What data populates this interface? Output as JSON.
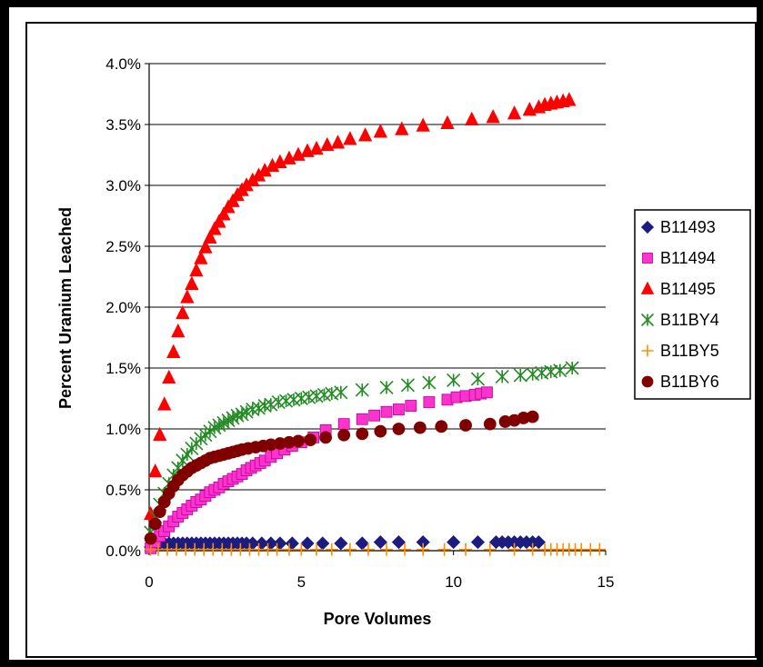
{
  "chart_data": {
    "type": "scatter",
    "title": "",
    "xlabel": "Pore Volumes",
    "ylabel": "Percent Uranium Leached",
    "xlim": [
      0,
      15
    ],
    "ylim": [
      0,
      0.04
    ],
    "xticks": [
      0,
      5,
      10,
      15
    ],
    "xtick_labels": [
      "0",
      "5",
      "10",
      "15"
    ],
    "yticks": [
      0,
      0.005,
      0.01,
      0.015,
      0.02,
      0.025,
      0.03,
      0.035,
      0.04
    ],
    "ytick_labels": [
      "0.0%",
      "0.5%",
      "1.0%",
      "1.5%",
      "2.0%",
      "2.5%",
      "3.0%",
      "3.5%",
      "4.0%"
    ],
    "grid": "horizontal major gridlines",
    "legend": "right",
    "series": [
      {
        "name": "B11493",
        "marker": "diamond",
        "color": "#1c1c80",
        "x": [
          0.05,
          0.2,
          0.35,
          0.5,
          0.65,
          0.8,
          0.95,
          1.1,
          1.25,
          1.4,
          1.55,
          1.7,
          1.85,
          2.0,
          2.15,
          2.3,
          2.45,
          2.6,
          2.75,
          2.9,
          3.05,
          3.2,
          3.4,
          3.7,
          4.0,
          4.3,
          4.7,
          5.2,
          5.7,
          6.3,
          7.0,
          7.6,
          8.2,
          9.0,
          10.0,
          10.8,
          11.4,
          11.6,
          11.8,
          12.0,
          12.2,
          12.4,
          12.6,
          12.8
        ],
        "y": [
          0.0003,
          0.0005,
          0.0006,
          0.0006,
          0.0006,
          0.0006,
          0.0006,
          0.0006,
          0.0006,
          0.0006,
          0.0006,
          0.0006,
          0.0006,
          0.0006,
          0.0006,
          0.0006,
          0.0006,
          0.0006,
          0.0006,
          0.0006,
          0.0006,
          0.0006,
          0.0006,
          0.0006,
          0.0006,
          0.0006,
          0.0006,
          0.0006,
          0.0006,
          0.0006,
          0.0006,
          0.0007,
          0.0007,
          0.0007,
          0.0007,
          0.0007,
          0.0007,
          0.0007,
          0.0007,
          0.0007,
          0.0007,
          0.0007,
          0.0007,
          0.0007
        ]
      },
      {
        "name": "B11494",
        "marker": "square",
        "color": "#ff33cc",
        "x": [
          0.05,
          0.2,
          0.35,
          0.5,
          0.65,
          0.8,
          0.95,
          1.1,
          1.25,
          1.4,
          1.55,
          1.7,
          1.85,
          2.0,
          2.15,
          2.3,
          2.45,
          2.6,
          2.75,
          2.9,
          3.05,
          3.2,
          3.35,
          3.5,
          3.65,
          3.8,
          4.0,
          4.2,
          4.45,
          4.7,
          5.0,
          5.4,
          5.8,
          6.4,
          7.0,
          7.4,
          7.8,
          8.2,
          8.6,
          9.2,
          9.8,
          10.1,
          10.4,
          10.7,
          10.9,
          11.1
        ],
        "y": [
          0.0002,
          0.0007,
          0.0012,
          0.0016,
          0.002,
          0.0024,
          0.0028,
          0.0031,
          0.0034,
          0.0037,
          0.004,
          0.0042,
          0.0045,
          0.0048,
          0.005,
          0.0052,
          0.0055,
          0.0057,
          0.0059,
          0.0061,
          0.0063,
          0.0066,
          0.0068,
          0.007,
          0.0072,
          0.0074,
          0.0077,
          0.008,
          0.0083,
          0.0086,
          0.0089,
          0.0093,
          0.0099,
          0.0104,
          0.0108,
          0.0111,
          0.0114,
          0.0116,
          0.0119,
          0.0122,
          0.0124,
          0.0126,
          0.0127,
          0.0128,
          0.0129,
          0.013
        ]
      },
      {
        "name": "B11495",
        "marker": "triangle",
        "color": "#ff0000",
        "x": [
          0.05,
          0.2,
          0.35,
          0.5,
          0.65,
          0.8,
          0.95,
          1.1,
          1.25,
          1.4,
          1.55,
          1.7,
          1.85,
          2.0,
          2.15,
          2.3,
          2.45,
          2.6,
          2.75,
          2.9,
          3.05,
          3.2,
          3.4,
          3.6,
          3.8,
          4.05,
          4.3,
          4.6,
          4.9,
          5.2,
          5.5,
          5.85,
          6.2,
          6.6,
          7.1,
          7.6,
          8.3,
          9.0,
          9.8,
          10.6,
          11.3,
          12.0,
          12.5,
          12.8,
          13.0,
          13.2,
          13.4,
          13.6,
          13.8
        ],
        "y": [
          0.003,
          0.0065,
          0.0095,
          0.012,
          0.0142,
          0.0163,
          0.018,
          0.0195,
          0.0208,
          0.0219,
          0.023,
          0.024,
          0.0249,
          0.0257,
          0.0264,
          0.027,
          0.0276,
          0.0282,
          0.0287,
          0.0292,
          0.0296,
          0.03,
          0.0304,
          0.0308,
          0.0312,
          0.0316,
          0.0319,
          0.0322,
          0.0325,
          0.0328,
          0.033,
          0.0333,
          0.0335,
          0.0338,
          0.0341,
          0.0344,
          0.0346,
          0.0349,
          0.0351,
          0.0354,
          0.0356,
          0.0359,
          0.0362,
          0.0364,
          0.0366,
          0.0367,
          0.0368,
          0.0369,
          0.037
        ]
      },
      {
        "name": "B11BY4",
        "marker": "asterisk",
        "color": "#228b22",
        "x": [
          0.05,
          0.2,
          0.35,
          0.5,
          0.65,
          0.8,
          0.95,
          1.1,
          1.25,
          1.4,
          1.55,
          1.7,
          1.85,
          2.0,
          2.15,
          2.3,
          2.45,
          2.6,
          2.75,
          2.9,
          3.05,
          3.2,
          3.4,
          3.6,
          3.8,
          4.0,
          4.25,
          4.5,
          4.75,
          5.0,
          5.25,
          5.5,
          5.75,
          6.0,
          6.3,
          7.0,
          7.8,
          8.5,
          9.2,
          10.0,
          10.8,
          11.6,
          12.2,
          12.6,
          12.9,
          13.2,
          13.5,
          13.9
        ],
        "y": [
          0.0015,
          0.0028,
          0.0038,
          0.0047,
          0.0055,
          0.0062,
          0.0068,
          0.0074,
          0.0079,
          0.0084,
          0.0088,
          0.0092,
          0.0095,
          0.0098,
          0.0101,
          0.0103,
          0.0105,
          0.0107,
          0.0109,
          0.0111,
          0.0112,
          0.0114,
          0.0116,
          0.0117,
          0.0119,
          0.012,
          0.0122,
          0.0123,
          0.0124,
          0.0125,
          0.0126,
          0.0127,
          0.0128,
          0.0129,
          0.013,
          0.0132,
          0.0134,
          0.0136,
          0.0138,
          0.014,
          0.0141,
          0.0143,
          0.0144,
          0.0145,
          0.0146,
          0.0147,
          0.0148,
          0.015
        ]
      },
      {
        "name": "B11BY5",
        "marker": "plus",
        "color": "#ff8c00",
        "x": [
          0.05,
          0.3,
          0.6,
          0.9,
          1.2,
          1.5,
          1.8,
          2.1,
          2.4,
          2.7,
          3.0,
          3.3,
          3.6,
          3.9,
          4.2,
          4.6,
          5.0,
          5.5,
          6.0,
          6.6,
          7.2,
          7.8,
          8.4,
          9.0,
          9.7,
          10.4,
          11.2,
          12.0,
          12.6,
          13.0,
          13.2,
          13.4,
          13.6,
          13.8,
          14.0,
          14.2,
          14.5,
          14.8
        ],
        "y": [
          0.0001,
          0.0001,
          0.0001,
          0.0001,
          0.0001,
          0.0001,
          0.0001,
          0.0001,
          0.0001,
          0.0001,
          0.0001,
          0.0001,
          0.0001,
          0.0001,
          0.0001,
          0.0001,
          0.0001,
          0.0001,
          0.0001,
          0.0001,
          0.0001,
          0.0001,
          0.0001,
          0.0001,
          0.0001,
          0.0001,
          0.0001,
          0.0001,
          0.0001,
          0.0001,
          0.0001,
          0.0001,
          0.0001,
          0.0001,
          0.0001,
          0.0001,
          0.0001,
          0.0001
        ]
      },
      {
        "name": "B11BY6",
        "marker": "circle",
        "color": "#800000",
        "x": [
          0.05,
          0.2,
          0.35,
          0.5,
          0.65,
          0.8,
          0.95,
          1.1,
          1.25,
          1.4,
          1.55,
          1.7,
          1.85,
          2.0,
          2.15,
          2.3,
          2.45,
          2.6,
          2.75,
          2.9,
          3.05,
          3.25,
          3.5,
          3.75,
          4.0,
          4.3,
          4.6,
          4.9,
          5.3,
          5.8,
          6.4,
          7.0,
          7.6,
          8.2,
          8.9,
          9.6,
          10.4,
          11.2,
          11.7,
          12.0,
          12.3,
          12.6
        ],
        "y": [
          0.001,
          0.0022,
          0.0032,
          0.004,
          0.0047,
          0.0053,
          0.0058,
          0.0062,
          0.0065,
          0.0068,
          0.007,
          0.0072,
          0.0074,
          0.0076,
          0.0077,
          0.0078,
          0.0079,
          0.008,
          0.0081,
          0.0082,
          0.0083,
          0.0084,
          0.0085,
          0.0086,
          0.0087,
          0.0088,
          0.0089,
          0.009,
          0.0091,
          0.0093,
          0.0095,
          0.0096,
          0.0098,
          0.01,
          0.0101,
          0.0102,
          0.0103,
          0.0104,
          0.0106,
          0.0107,
          0.0109,
          0.011
        ]
      }
    ]
  }
}
